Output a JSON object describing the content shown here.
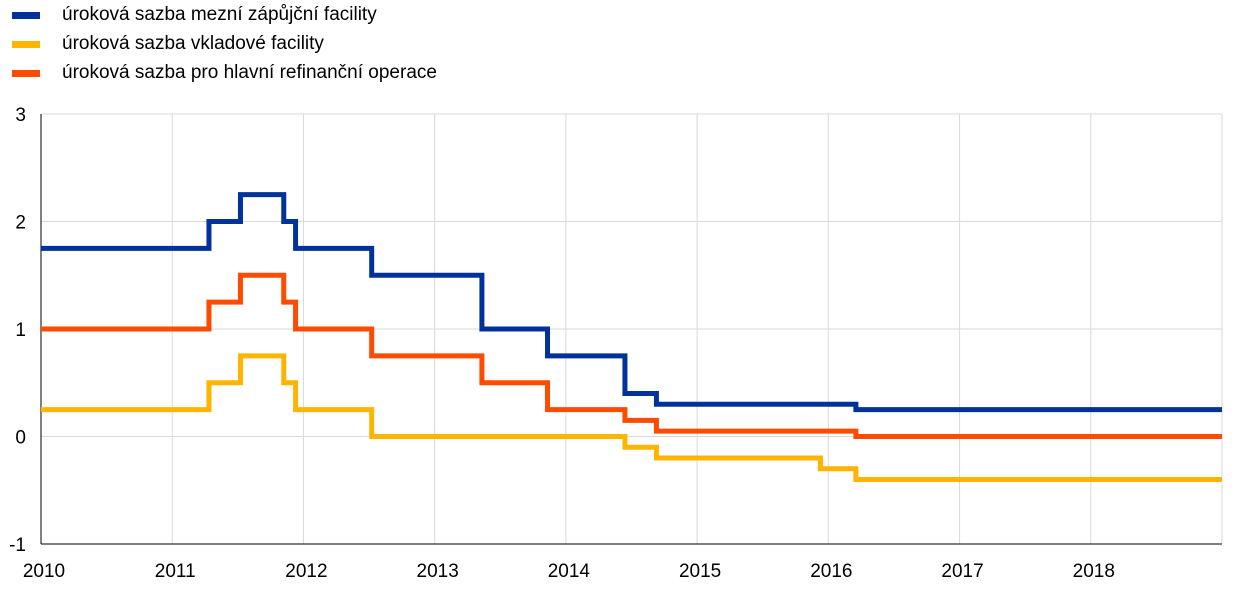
{
  "chart_data": {
    "type": "line",
    "step": true,
    "title": "",
    "xlabel": "",
    "ylabel": "",
    "xlim": [
      2010,
      2019
    ],
    "ylim": [
      -1,
      3
    ],
    "grid": true,
    "legend_position": "top-left",
    "x_tick_labels": [
      "2010",
      "2011",
      "2012",
      "2013",
      "2014",
      "2015",
      "2016",
      "2017",
      "2018"
    ],
    "y_tick_labels": [
      "-1",
      "0",
      "1",
      "2",
      "3"
    ],
    "series": [
      {
        "name": "úroková sazba mezní zápůjční facility",
        "color": "#003299",
        "points": [
          [
            2010.0,
            1.75
          ],
          [
            2011.28,
            2.0
          ],
          [
            2011.52,
            2.25
          ],
          [
            2011.85,
            2.0
          ],
          [
            2011.94,
            1.75
          ],
          [
            2012.52,
            1.5
          ],
          [
            2013.36,
            1.0
          ],
          [
            2013.86,
            0.75
          ],
          [
            2014.45,
            0.4
          ],
          [
            2014.69,
            0.3
          ],
          [
            2016.21,
            0.25
          ],
          [
            2019.0,
            0.25
          ]
        ]
      },
      {
        "name": "úroková sazba vkladové facility",
        "color": "#FFB400",
        "points": [
          [
            2010.0,
            0.25
          ],
          [
            2011.28,
            0.5
          ],
          [
            2011.52,
            0.75
          ],
          [
            2011.85,
            0.5
          ],
          [
            2011.94,
            0.25
          ],
          [
            2012.52,
            0.0
          ],
          [
            2014.45,
            -0.1
          ],
          [
            2014.69,
            -0.2
          ],
          [
            2015.94,
            -0.3
          ],
          [
            2016.21,
            -0.4
          ],
          [
            2019.0,
            -0.4
          ]
        ]
      },
      {
        "name": "úroková sazba pro hlavní refinanční operace",
        "color": "#FF4B00",
        "points": [
          [
            2010.0,
            1.0
          ],
          [
            2011.28,
            1.25
          ],
          [
            2011.52,
            1.5
          ],
          [
            2011.85,
            1.25
          ],
          [
            2011.94,
            1.0
          ],
          [
            2012.52,
            0.75
          ],
          [
            2013.36,
            0.5
          ],
          [
            2013.86,
            0.25
          ],
          [
            2014.45,
            0.15
          ],
          [
            2014.69,
            0.05
          ],
          [
            2016.21,
            0.0
          ],
          [
            2019.0,
            0.0
          ]
        ]
      }
    ]
  }
}
